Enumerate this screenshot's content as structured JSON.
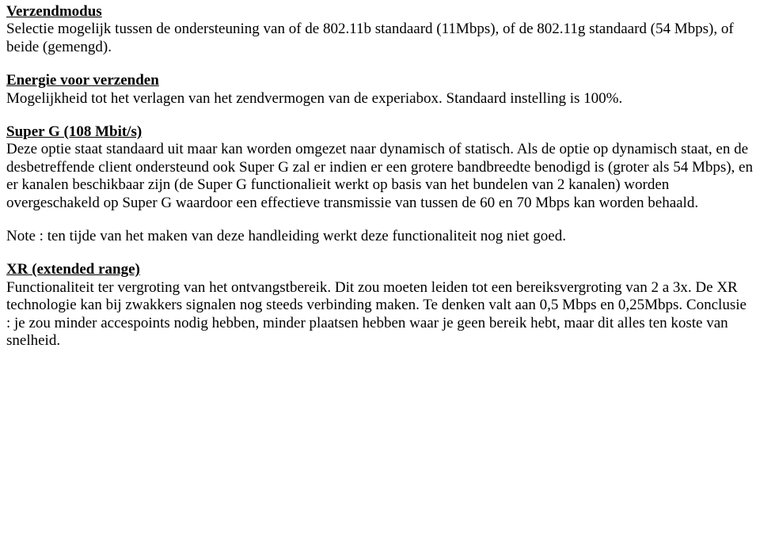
{
  "verzendmodus": {
    "heading": "Verzendmodus",
    "body": "Selectie mogelijk tussen de ondersteuning van of de 802.11b standaard (11Mbps), of de 802.11g standaard (54 Mbps), of beide (gemengd)."
  },
  "energie": {
    "heading": "Energie voor verzenden",
    "body": "Mogelijkheid tot het verlagen van het zendvermogen van de experiabox. Standaard instelling is 100%."
  },
  "superg": {
    "heading": "Super G (108 Mbit/s)",
    "body": "Deze optie staat standaard uit maar kan worden omgezet naar dynamisch of statisch. Als de optie op dynamisch staat, en de desbetreffende client ondersteund ook Super G zal er indien er een grotere bandbreedte benodigd is (groter als 54 Mbps), en er kanalen beschikbaar zijn (de Super G functionalieit werkt op basis van het bundelen van 2 kanalen) worden overgeschakeld op Super G waardoor een effectieve transmissie van tussen de 60 en 70 Mbps kan worden behaald."
  },
  "note": {
    "body": "Note : ten tijde van het maken van deze handleiding werkt deze functionaliteit nog niet goed."
  },
  "xr": {
    "heading": "XR (extended range)",
    "body": "Functionaliteit ter vergroting van het ontvangstbereik. Dit zou moeten leiden tot een bereiksvergroting van 2 a 3x. De XR technologie kan bij zwakkers signalen nog steeds verbinding maken. Te denken valt aan 0,5 Mbps en 0,25Mbps. Conclusie : je zou minder accespoints nodig hebben, minder plaatsen hebben waar je geen bereik hebt, maar dit alles ten koste van snelheid."
  }
}
